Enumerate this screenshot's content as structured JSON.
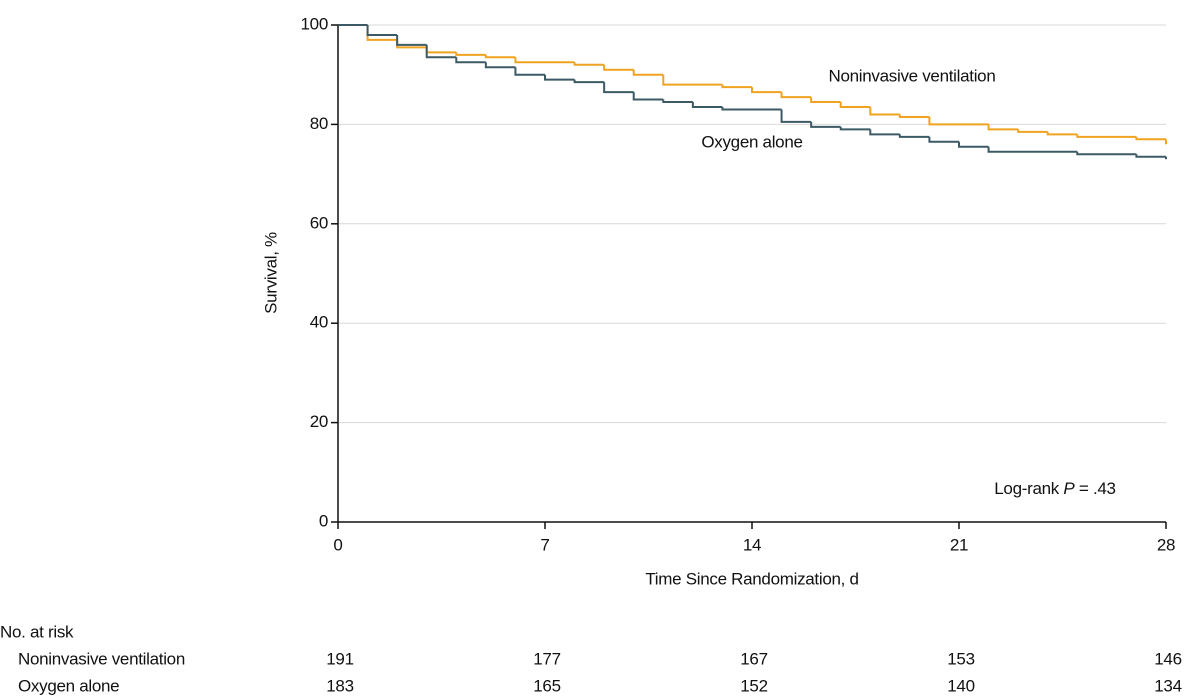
{
  "chart_data": {
    "type": "step",
    "x_label": "Time Since Randomization, d",
    "y_label": "Survival, %",
    "xlim": [
      0,
      28
    ],
    "xticks": [
      0,
      7,
      14,
      21,
      28
    ],
    "ylim": [
      0,
      100
    ],
    "yticks": [
      0,
      20,
      40,
      60,
      80,
      100
    ],
    "grid": true,
    "series": [
      {
        "name": "Noninvasive ventilation",
        "color": "#f0a321",
        "x": [
          0,
          1,
          2,
          3,
          4,
          5,
          6,
          8,
          9,
          10,
          11,
          13,
          14,
          15,
          16,
          17,
          18,
          19,
          20,
          22,
          23,
          24,
          25,
          27,
          28
        ],
        "values": [
          100,
          97,
          95.5,
          94.5,
          94,
          93.5,
          92.5,
          92,
          91,
          90,
          88,
          87.5,
          86.5,
          85.5,
          84.5,
          83.5,
          82,
          81.5,
          80,
          79,
          78.5,
          78,
          77.5,
          77,
          76
        ]
      },
      {
        "name": "Oxygen alone",
        "color": "#3c5a66",
        "x": [
          0,
          1,
          2,
          3,
          4,
          5,
          6,
          7,
          8,
          9,
          10,
          11,
          12,
          13,
          15,
          16,
          17,
          18,
          19,
          20,
          21,
          22,
          25,
          27,
          28
        ],
        "values": [
          100,
          98,
          96,
          93.5,
          92.5,
          91.5,
          90,
          89,
          88.5,
          86.5,
          85,
          84.5,
          83.5,
          83,
          80.5,
          79.5,
          79,
          78,
          77.5,
          76.5,
          75.5,
          74.5,
          74,
          73.5,
          73
        ]
      }
    ],
    "annotation": {
      "prefix": "Log-rank",
      "italic": "P",
      "suffix": "= .43"
    },
    "risk_table": {
      "title": "No. at risk",
      "rows": [
        {
          "name": "Noninvasive ventilation",
          "values": [
            "191",
            "177",
            "167",
            "153",
            "146"
          ]
        },
        {
          "name": "Oxygen alone",
          "values": [
            "183",
            "165",
            "152",
            "140",
            "134"
          ]
        }
      ]
    }
  }
}
